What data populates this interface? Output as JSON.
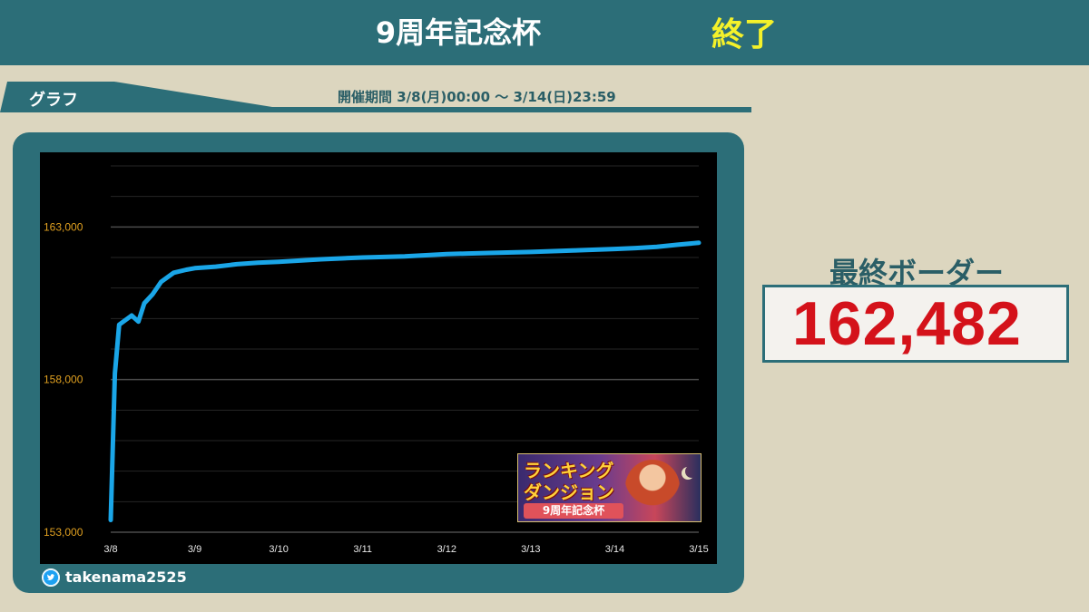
{
  "header": {
    "title": "9周年記念杯",
    "status": "終了"
  },
  "section": {
    "label": "グラフ",
    "period": "開催期間 3/8(月)00:00 〜 3/14(日)23:59"
  },
  "banner": {
    "line1": "ランキング",
    "line2": "ダンジョン",
    "subtitle": "9周年記念杯"
  },
  "footer": {
    "twitter_handle": "takenama2525"
  },
  "border": {
    "label": "最終ボーダー",
    "value": "162,482"
  },
  "colors": {
    "header_bg": "#2c6e78",
    "page_bg": "#dcd6bf",
    "line": "#1aa6e8",
    "tick_label": "#e0a020",
    "status": "#f4f12a",
    "value": "#d4121a"
  },
  "chart_data": {
    "type": "line",
    "title": "",
    "xlabel": "",
    "ylabel": "",
    "x_ticks": [
      "3/8",
      "3/9",
      "3/10",
      "3/11",
      "3/12",
      "3/13",
      "3/14",
      "3/15"
    ],
    "y_ticks": [
      "153,000",
      "158,000",
      "163,000"
    ],
    "y_tick_values": [
      153000,
      158000,
      163000
    ],
    "ylim": [
      153000,
      165000
    ],
    "xlim": [
      0,
      7
    ],
    "grid": true,
    "series": [
      {
        "values": [
          [
            0.0,
            153400
          ],
          [
            0.05,
            158200
          ],
          [
            0.1,
            159800
          ],
          [
            0.25,
            160100
          ],
          [
            0.33,
            159900
          ],
          [
            0.4,
            160500
          ],
          [
            0.5,
            160800
          ],
          [
            0.6,
            161200
          ],
          [
            0.75,
            161500
          ],
          [
            0.9,
            161600
          ],
          [
            1.0,
            161650
          ],
          [
            1.25,
            161700
          ],
          [
            1.5,
            161780
          ],
          [
            1.75,
            161830
          ],
          [
            2.0,
            161860
          ],
          [
            2.25,
            161900
          ],
          [
            2.5,
            161940
          ],
          [
            2.75,
            161970
          ],
          [
            3.0,
            162000
          ],
          [
            3.5,
            162040
          ],
          [
            4.0,
            162110
          ],
          [
            4.25,
            162130
          ],
          [
            4.5,
            162150
          ],
          [
            5.0,
            162180
          ],
          [
            5.5,
            162230
          ],
          [
            6.0,
            162280
          ],
          [
            6.25,
            162310
          ],
          [
            6.5,
            162350
          ],
          [
            6.75,
            162420
          ],
          [
            7.0,
            162482
          ]
        ]
      }
    ]
  }
}
